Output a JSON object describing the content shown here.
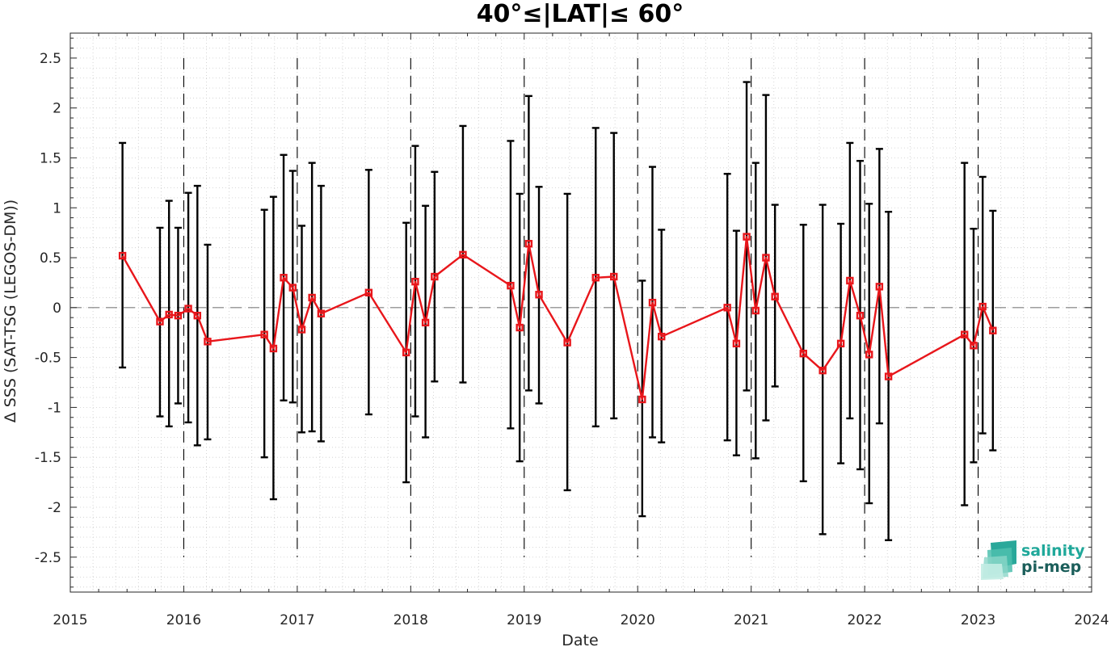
{
  "chart_data": {
    "type": "line",
    "title": "40°≤|LAT|≤ 60°",
    "xlabel": "Date",
    "ylabel": "Δ SSS (SAT-TSG (LEGOS-DM))",
    "xlim": [
      2015.0,
      2024.0
    ],
    "ylim": [
      -2.85,
      2.75
    ],
    "x_ticks": [
      "2015",
      "2016",
      "2017",
      "2018",
      "2019",
      "2020",
      "2021",
      "2022",
      "2023",
      "2024"
    ],
    "y_ticks": [
      "2.5",
      "2",
      "1.5",
      "1",
      "0.5",
      "0",
      "-0.5",
      "-1",
      "-1.5",
      "-2",
      "-2.5"
    ],
    "grid": "minor dotted",
    "reference_line_y": 0,
    "year_boundary_lines": [
      2016,
      2017,
      2018,
      2019,
      2020,
      2021,
      2022,
      2023
    ],
    "colors": {
      "series": "#e8161b",
      "errorbar": "#000000",
      "reference": "#7f7f7f",
      "grid": "#cccccc"
    },
    "series": [
      {
        "x": [
          2015.46,
          2015.79,
          2015.87,
          2015.95,
          2016.04,
          2016.12,
          2016.21,
          2016.71,
          2016.79,
          2016.88,
          2016.96,
          2017.04,
          2017.13,
          2017.21,
          2017.63,
          2017.96,
          2018.04,
          2018.13,
          2018.21,
          2018.46,
          2018.88,
          2018.96,
          2019.04,
          2019.13,
          2019.38,
          2019.63,
          2019.79,
          2020.04,
          2020.13,
          2020.21,
          2020.79,
          2020.87,
          2020.96,
          2021.04,
          2021.13,
          2021.21,
          2021.46,
          2021.63,
          2021.79,
          2021.87,
          2021.96,
          2022.04,
          2022.13,
          2022.21,
          2022.88,
          2022.96,
          2023.04,
          2023.13
        ],
        "values": [
          0.52,
          -0.14,
          -0.07,
          -0.08,
          -0.01,
          -0.08,
          -0.34,
          -0.27,
          -0.41,
          0.3,
          0.2,
          -0.22,
          0.1,
          -0.06,
          0.15,
          -0.45,
          0.26,
          -0.15,
          0.31,
          0.53,
          0.22,
          -0.2,
          0.64,
          0.13,
          -0.35,
          0.3,
          0.31,
          -0.92,
          0.05,
          -0.29,
          0.0,
          -0.36,
          0.71,
          -0.03,
          0.5,
          0.11,
          -0.46,
          -0.63,
          -0.36,
          0.27,
          -0.08,
          -0.47,
          0.21,
          -0.69,
          -0.27,
          -0.38,
          0.01,
          -0.23
        ],
        "err_low": [
          -0.6,
          -1.09,
          -1.19,
          -0.96,
          -1.15,
          -1.38,
          -1.32,
          -1.5,
          -1.92,
          -0.93,
          -0.95,
          -1.25,
          -1.24,
          -1.34,
          -1.07,
          -1.75,
          -1.09,
          -1.3,
          -0.74,
          -0.75,
          -1.21,
          -1.54,
          -0.83,
          -0.96,
          -1.83,
          -1.19,
          -1.11,
          -2.09,
          -1.3,
          -1.35,
          -1.33,
          -1.48,
          -0.83,
          -1.51,
          -1.13,
          -0.79,
          -1.74,
          -2.27,
          -1.56,
          -1.11,
          -1.62,
          -1.96,
          -1.16,
          -2.33,
          -1.98,
          -1.55,
          -1.26,
          -1.43
        ],
        "err_high": [
          1.65,
          0.8,
          1.07,
          0.8,
          1.15,
          1.22,
          0.63,
          0.98,
          1.11,
          1.53,
          1.37,
          0.82,
          1.45,
          1.22,
          1.38,
          0.85,
          1.62,
          1.02,
          1.36,
          1.82,
          1.67,
          1.14,
          2.12,
          1.21,
          1.14,
          1.8,
          1.75,
          0.27,
          1.41,
          0.78,
          1.34,
          0.77,
          2.26,
          1.45,
          2.13,
          1.03,
          0.83,
          1.03,
          0.84,
          1.65,
          1.47,
          1.04,
          1.59,
          0.96,
          1.45,
          0.79,
          1.31,
          0.97
        ]
      }
    ]
  },
  "logo": {
    "line1": "salinity",
    "line2": "pi-mep",
    "color1": "#1fa89a",
    "color2": "#1b5e5a"
  }
}
